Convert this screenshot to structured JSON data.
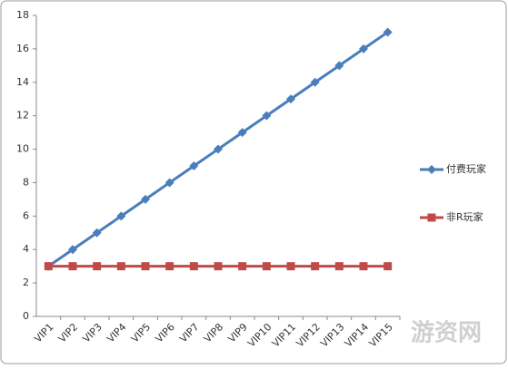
{
  "chart_data": {
    "type": "line",
    "categories": [
      "VIP1",
      "VIP2",
      "VIP3",
      "VIP4",
      "VIP5",
      "VIP6",
      "VIP7",
      "VIP8",
      "VIP9",
      "VIP10",
      "VIP11",
      "VIP12",
      "VIP13",
      "VIP14",
      "VIP15"
    ],
    "series": [
      {
        "name": "付费玩家",
        "color": "#4a7ebb",
        "marker": "diamond",
        "values": [
          3,
          4,
          5,
          6,
          7,
          8,
          9,
          10,
          11,
          12,
          13,
          14,
          15,
          16,
          17
        ]
      },
      {
        "name": "非R玩家",
        "color": "#be4b48",
        "marker": "square",
        "values": [
          3,
          3,
          3,
          3,
          3,
          3,
          3,
          3,
          3,
          3,
          3,
          3,
          3,
          3,
          3
        ]
      }
    ],
    "ylim": [
      0,
      18
    ],
    "yticks": [
      0,
      2,
      4,
      6,
      8,
      10,
      12,
      14,
      16,
      18
    ],
    "grid": false,
    "legend": "right",
    "watermark": "游资网"
  }
}
